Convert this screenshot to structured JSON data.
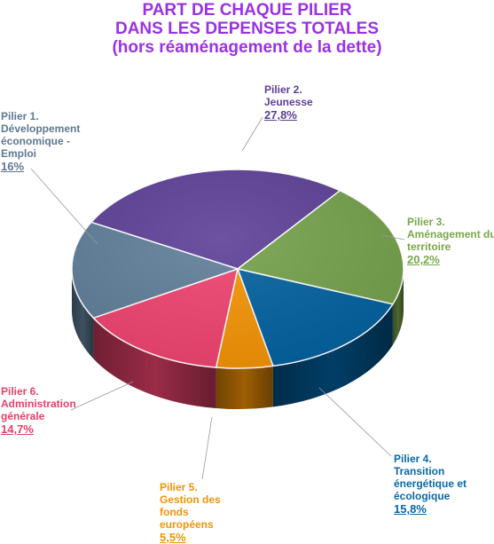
{
  "chart_data": {
    "type": "pie",
    "title": [
      "PART DE CHAQUE PILIER",
      "DANS LES DEPENSES TOTALES",
      "(hors réaménagement de la dette)"
    ],
    "slices": [
      {
        "label": [
          "Pilier 2.",
          "Jeunesse"
        ],
        "value": 27.8,
        "value_label": "27,8%",
        "color": "#5c3f96",
        "text_color": "#5c3f96"
      },
      {
        "label": [
          "Pilier 3.",
          "Aménagement du",
          "territoire"
        ],
        "value": 20.2,
        "value_label": "20,2%",
        "color": "#74a04b",
        "text_color": "#77a84a"
      },
      {
        "label": [
          "Pilier 4.",
          "Transition",
          "énergétique et",
          "écologique"
        ],
        "value": 15.8,
        "value_label": "15,8%",
        "color": "#02609e",
        "text_color": "#0868a8"
      },
      {
        "label": [
          "Pilier 5.",
          "Gestion des",
          "fonds",
          "européens"
        ],
        "value": 5.5,
        "value_label": "5,5%",
        "color": "#f39205",
        "text_color": "#f09409"
      },
      {
        "label": [
          "Pilier 6.",
          "Administration",
          "générale"
        ],
        "value": 14.7,
        "value_label": "14,7%",
        "color": "#ee426e",
        "text_color": "#e8406a"
      },
      {
        "label": [
          "Pilier 1.",
          "Développement",
          "économique -",
          "Emploi"
        ],
        "value": 16,
        "value_label": "16%",
        "color": "#5f7d98",
        "text_color": "#5f7890"
      }
    ]
  }
}
